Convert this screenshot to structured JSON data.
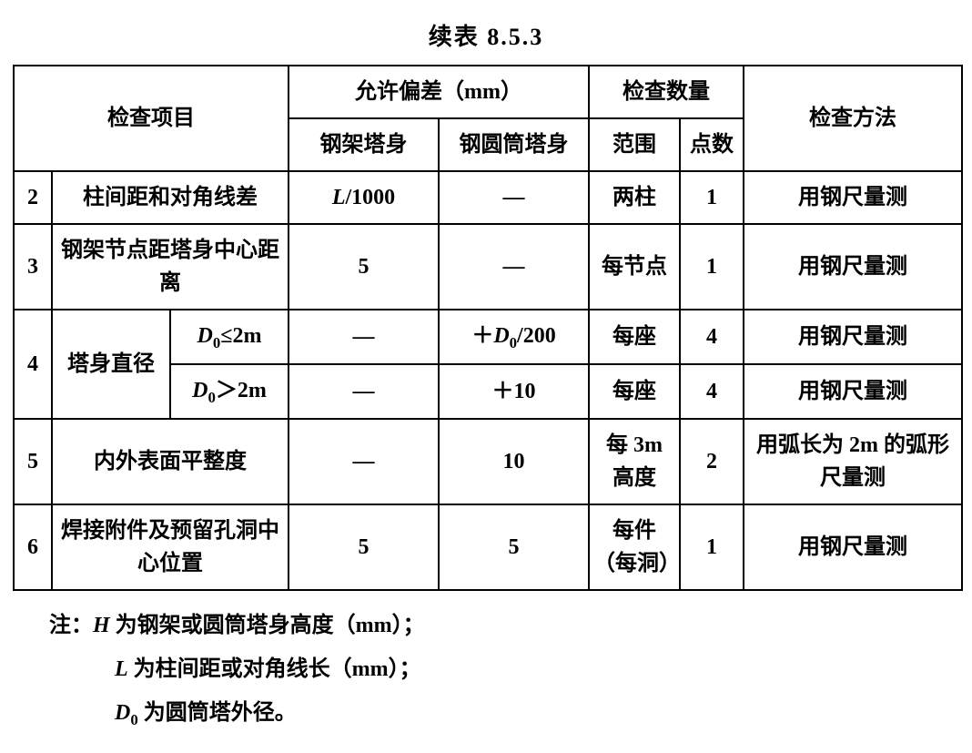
{
  "title": "续表 8.5.3",
  "header": {
    "item": "检查项目",
    "tolerance": "允许偏差（mm）",
    "quantity": "检查数量",
    "method": "检查方法",
    "tol_steel_frame": "钢架塔身",
    "tol_steel_cyl": "钢圆筒塔身",
    "scope": "范围",
    "count": "点数"
  },
  "rows": {
    "r2": {
      "num": "2",
      "item": "柱间距和对角线差",
      "tol1_html": "<span class='ital'>L</span>/1000",
      "tol2": "—",
      "scope": "两柱",
      "count": "1",
      "method": "用钢尺量测"
    },
    "r3": {
      "num": "3",
      "item": "钢架节点距塔身中心距离",
      "tol1": "5",
      "tol2": "—",
      "scope": "每节点",
      "count": "1",
      "method": "用钢尺量测"
    },
    "r4": {
      "num": "4",
      "item": "塔身直径",
      "sub_a_html": "<span class='ital'>D</span><span class='sub'>0</span>≤2m",
      "sub_b_html": "<span class='ital'>D</span><span class='sub'>0</span>＞2m",
      "a_tol1": "—",
      "a_tol2_html": "＋<span class='ital'>D</span><span class='sub'>0</span>/200",
      "a_scope": "每座",
      "a_count": "4",
      "a_method": "用钢尺量测",
      "b_tol1": "—",
      "b_tol2": "＋10",
      "b_scope": "每座",
      "b_count": "4",
      "b_method": "用钢尺量测"
    },
    "r5": {
      "num": "5",
      "item": "内外表面平整度",
      "tol1": "—",
      "tol2": "10",
      "scope": "每 3m 高度",
      "count": "2",
      "method": "用弧长为 2m 的弧形尺量测"
    },
    "r6": {
      "num": "6",
      "item": "焊接附件及预留孔洞中心位置",
      "tol1": "5",
      "tol2": "5",
      "scope": "每件（每洞）",
      "count": "1",
      "method": "用钢尺量测"
    }
  },
  "notes": {
    "prefix": "注：",
    "n1_html": "<span class='ital'>H</span> 为钢架或圆筒塔身高度（mm）；",
    "n2_html": "<span class='ital'>L</span> 为柱间距或对角线长（mm）；",
    "n3_html": "<span class='ital'>D</span><span class='sub'>0</span> 为圆筒塔外径。"
  },
  "style": {
    "border_color": "#000000",
    "background_color": "#ffffff",
    "font_size_cell": 24,
    "font_size_title": 26,
    "font_weight": "bold"
  }
}
